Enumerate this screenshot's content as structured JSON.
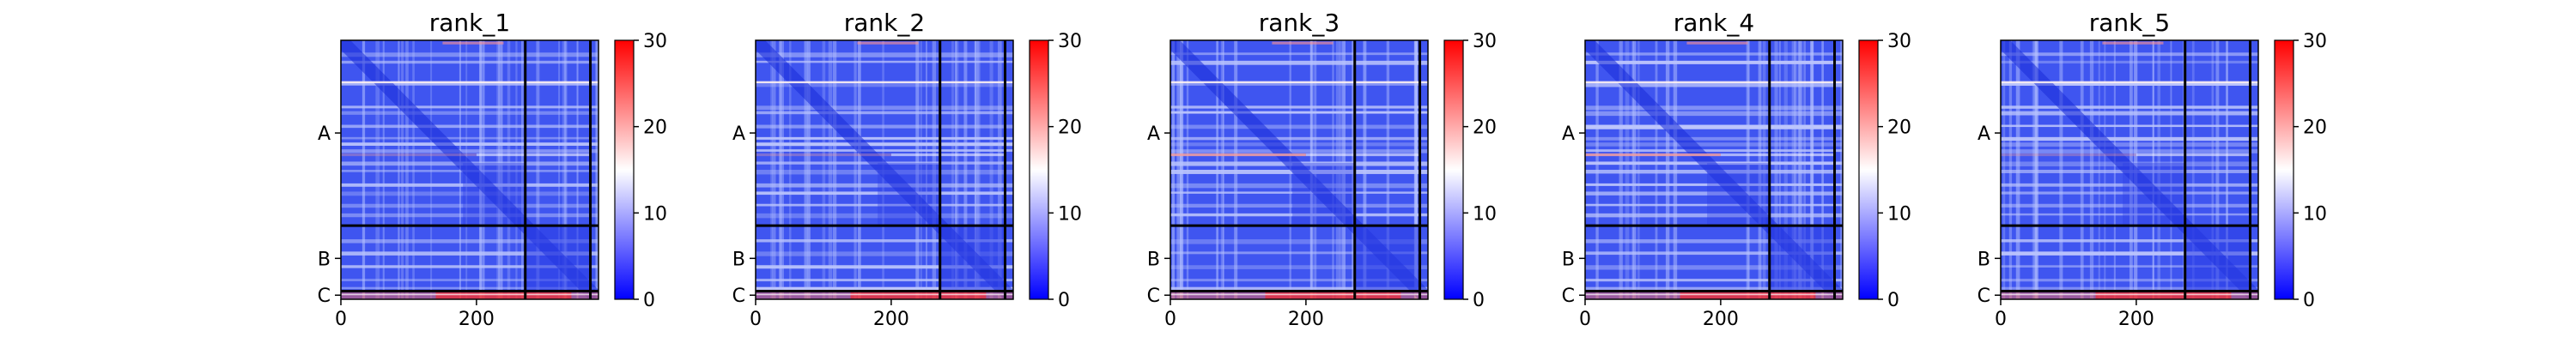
{
  "figure": {
    "panels": [
      {
        "title": "rank_1"
      },
      {
        "title": "rank_2"
      },
      {
        "title": "rank_3"
      },
      {
        "title": "rank_4"
      },
      {
        "title": "rank_5"
      }
    ]
  },
  "chart_data": {
    "type": "heatmap",
    "description_free": true,
    "panels": [
      "rank_1",
      "rank_2",
      "rank_3",
      "rank_4",
      "rank_5"
    ],
    "matrix_size": 380,
    "x_ticks": [
      0,
      200
    ],
    "x_tick_labels": [
      "0",
      "200"
    ],
    "y_tick_labels": [
      "A",
      "B",
      "C"
    ],
    "chain_boundaries": [
      272,
      368
    ],
    "chain_label_centers": [
      136,
      320,
      374
    ],
    "colorbar": {
      "range": [
        0,
        30
      ],
      "ticks": [
        0,
        10,
        20,
        30
      ],
      "tick_labels": [
        "0",
        "10",
        "20",
        "30"
      ],
      "colors": [
        "#0000ff",
        "#ffffff",
        "#ff0000"
      ],
      "center": 15
    },
    "cmap": "bwr",
    "grid": false
  }
}
